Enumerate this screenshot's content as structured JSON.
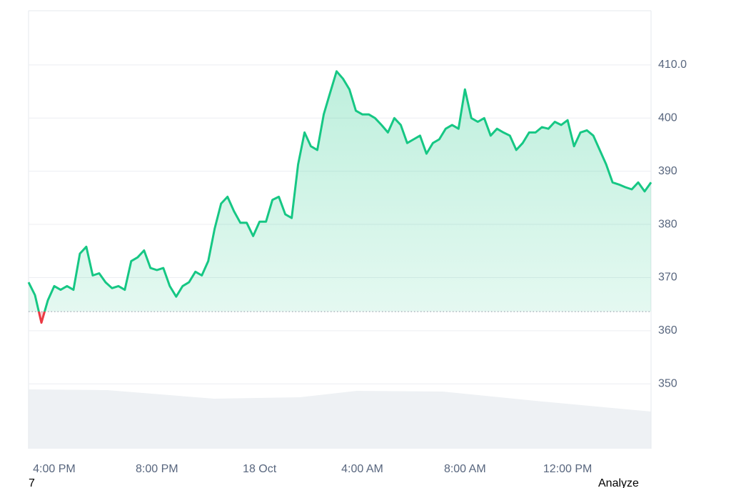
{
  "chart_data": {
    "type": "line",
    "values": [
      369.1,
      366.7,
      361.5,
      365.7,
      368.4,
      367.7,
      368.4,
      367.7,
      374.5,
      375.8,
      370.4,
      370.8,
      369.1,
      368.0,
      368.4,
      367.7,
      373.1,
      373.8,
      375.1,
      371.8,
      371.4,
      371.8,
      368.4,
      366.4,
      368.4,
      369.1,
      371.1,
      370.4,
      373.1,
      379.2,
      383.9,
      385.2,
      382.5,
      380.3,
      380.3,
      377.8,
      380.5,
      380.5,
      384.6,
      385.2,
      381.9,
      381.2,
      391.3,
      397.3,
      394.7,
      394.0,
      400.7,
      404.8,
      408.8,
      407.4,
      405.4,
      401.4,
      400.7,
      400.7,
      400.0,
      398.7,
      397.3,
      400.0,
      398.7,
      395.3,
      396.0,
      396.7,
      393.3,
      395.3,
      396.0,
      398.0,
      398.7,
      398.0,
      405.4,
      400.0,
      399.3,
      400.0,
      396.7,
      398.0,
      397.3,
      396.7,
      394.0,
      395.3,
      397.3,
      397.3,
      398.3,
      398.0,
      399.3,
      398.7,
      399.6,
      394.7,
      397.3,
      397.7,
      396.7,
      394.0,
      391.3,
      387.9,
      387.5,
      387.0,
      386.6,
      387.9,
      386.2,
      387.9
    ],
    "color": "#16c784",
    "below_color": "#ea3943",
    "baseline": 363.6,
    "xlim": [
      0,
      97
    ],
    "xticks": [
      {
        "value": 4,
        "label": "4:00 PM"
      },
      {
        "value": 20,
        "label": "8:00 PM"
      },
      {
        "value": 36,
        "label": "18 Oct"
      },
      {
        "value": 52,
        "label": "4:00 AM"
      },
      {
        "value": 68,
        "label": "8:00 AM"
      },
      {
        "value": 84,
        "label": "12:00 PM"
      }
    ],
    "ylim": [
      337.8,
      420.2
    ],
    "yticks": [
      350,
      360,
      370,
      380,
      390,
      400,
      {
        "value": 410,
        "label": "410.0"
      }
    ],
    "grid": true
  },
  "footer": {
    "left": "7",
    "right": "Analyze"
  }
}
